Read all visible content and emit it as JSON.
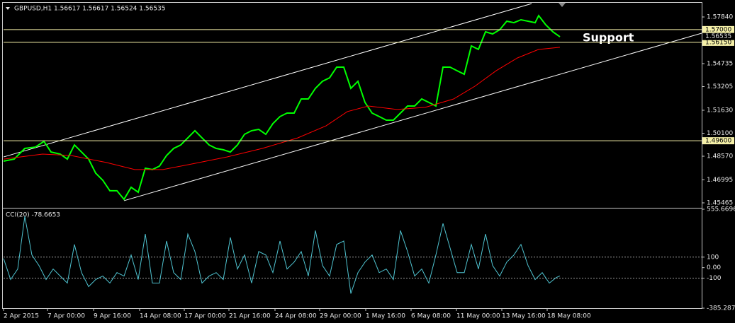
{
  "chart_data": [
    {
      "type": "line",
      "title": "GBPUSD,H1  1.56617 1.56617 1.56524 1.56535",
      "annotation": "Support",
      "xlim": [
        0,
        985
      ],
      "xticks": [
        {
          "value": 0,
          "label": "2 Apr 2015"
        },
        {
          "value": 62,
          "label": "7 Apr 00:00"
        },
        {
          "value": 127,
          "label": "9 Apr 16:00"
        },
        {
          "value": 192,
          "label": "14 Apr 08:00"
        },
        {
          "value": 255,
          "label": "17 Apr 00:00"
        },
        {
          "value": 318,
          "label": "21 Apr 16:00"
        },
        {
          "value": 383,
          "label": "24 Apr 08:00"
        },
        {
          "value": 446,
          "label": "29 Apr 00:00"
        },
        {
          "value": 511,
          "label": "1 May 16:00"
        },
        {
          "value": 575,
          "label": "6 May 08:00"
        },
        {
          "value": 639,
          "label": "11 May 00:00"
        },
        {
          "value": 703,
          "label": "13 May 16:00"
        },
        {
          "value": 767,
          "label": "18 May 08:00"
        }
      ],
      "ylim": [
        1.45136,
        1.58781
      ],
      "yticks": [
        {
          "value": 1.5784,
          "label": "1.57840"
        },
        1.54735,
        1.53205,
        {
          "value": 1.5163,
          "label": "1.51630"
        },
        {
          "value": 1.501,
          "label": "1.50100"
        },
        {
          "value": 1.4857,
          "label": "1.48570"
        },
        1.46995,
        1.45465
      ],
      "series": [
        {
          "color": "#00ff00",
          "x": [
            0,
            15,
            30,
            45,
            57,
            67,
            80,
            90,
            100,
            110,
            120,
            130,
            140,
            150,
            160,
            170,
            180,
            190,
            200,
            210,
            220,
            230,
            240,
            250,
            260,
            270,
            280,
            290,
            300,
            310,
            320,
            330,
            340,
            350,
            360,
            370,
            380,
            390,
            400,
            410,
            420,
            430,
            440,
            450,
            460,
            470,
            480,
            490,
            500,
            510,
            520,
            530,
            540,
            550,
            560,
            570,
            580,
            590,
            600,
            610,
            620,
            630,
            640,
            650,
            660,
            670,
            680,
            690,
            700,
            710,
            720,
            730,
            740,
            750,
            755,
            765,
            775,
            785
          ],
          "values": [
            1.4824,
            1.4838,
            1.4909,
            1.4918,
            1.4956,
            1.4885,
            1.4871,
            1.4838,
            1.4932,
            1.4885,
            1.4838,
            1.4744,
            1.4697,
            1.4627,
            1.4627,
            1.457,
            1.465,
            1.4617,
            1.4777,
            1.4768,
            1.4791,
            1.4862,
            1.4909,
            1.4932,
            1.4979,
            1.5027,
            1.4979,
            1.4932,
            1.4909,
            1.49,
            1.4885,
            1.4932,
            1.5003,
            1.5027,
            1.5036,
            1.5003,
            1.5074,
            1.5121,
            1.5144,
            1.5144,
            1.5238,
            1.5238,
            1.5309,
            1.5356,
            1.5379,
            1.545,
            1.545,
            1.5309,
            1.5356,
            1.5215,
            1.5144,
            1.5121,
            1.5097,
            1.5097,
            1.5144,
            1.5191,
            1.5191,
            1.5238,
            1.5215,
            1.5191,
            1.545,
            1.545,
            1.5426,
            1.5403,
            1.5591,
            1.5568,
            1.5685,
            1.5671,
            1.5699,
            1.5756,
            1.5746,
            1.5765,
            1.5756,
            1.5746,
            1.5793,
            1.5732,
            1.5685,
            1.5652
          ]
        },
        {
          "color": "#ff0000",
          "x": [
            0,
            55,
            95,
            145,
            185,
            225,
            265,
            315,
            365,
            415,
            455,
            485,
            515,
            555,
            595,
            635,
            665,
            695,
            725,
            755,
            785
          ],
          "values": [
            1.4838,
            1.4871,
            1.4862,
            1.4815,
            1.4768,
            1.4768,
            1.4805,
            1.4852,
            1.4909,
            1.4979,
            1.5059,
            1.5154,
            1.5191,
            1.5168,
            1.5182,
            1.5238,
            1.5323,
            1.5426,
            1.5511,
            1.5568,
            1.5582
          ]
        }
      ],
      "trendlines": [
        {
          "color": "#ffffff",
          "x": [
            0,
            745
          ],
          "values": [
            1.4852,
            1.5873
          ]
        },
        {
          "color": "#ffffff",
          "x": [
            170,
            985
          ],
          "values": [
            1.4561,
            1.5676
          ]
        }
      ],
      "levels": [
        {
          "value": 1.57,
          "label": "1.57000"
        },
        {
          "value": 1.5615,
          "label": "1.56150"
        },
        {
          "value": 1.496,
          "label": "1.49600"
        }
      ],
      "level_color": "#f5f0a8",
      "last_price": 1.56535
    },
    {
      "type": "line",
      "title": "CCI(20) -78.6653",
      "xlim": [
        0,
        985
      ],
      "ylim": [
        -385.2873,
        555.6696
      ],
      "yticks": [
        555.6696,
        100,
        {
          "value": 0,
          "label": "0.00"
        },
        -100,
        -385.2873
      ],
      "level_lines": [
        100,
        -100
      ],
      "series": [
        {
          "color": "#4fc3d0",
          "x": [
            0,
            10,
            20,
            30,
            40,
            50,
            60,
            70,
            80,
            90,
            100,
            110,
            120,
            130,
            140,
            150,
            160,
            170,
            180,
            190,
            200,
            210,
            220,
            230,
            240,
            250,
            260,
            270,
            280,
            290,
            300,
            310,
            320,
            330,
            340,
            350,
            360,
            370,
            380,
            390,
            400,
            410,
            420,
            430,
            440,
            450,
            460,
            470,
            480,
            490,
            500,
            510,
            520,
            530,
            540,
            550,
            560,
            570,
            580,
            590,
            600,
            610,
            620,
            630,
            640,
            650,
            660,
            670,
            680,
            690,
            700,
            710,
            720,
            730,
            740,
            750,
            760,
            770,
            780,
            785
          ],
          "values": [
            87,
            -113,
            -13,
            487,
            120,
            20,
            -113,
            -13,
            -80,
            -147,
            220,
            -47,
            -180,
            -113,
            -80,
            -147,
            -47,
            -80,
            120,
            -113,
            320,
            -147,
            -147,
            253,
            -47,
            -113,
            320,
            153,
            -147,
            -80,
            -47,
            -113,
            287,
            -13,
            120,
            -147,
            153,
            120,
            -47,
            253,
            -13,
            53,
            153,
            -80,
            353,
            20,
            -80,
            220,
            253,
            -247,
            -47,
            53,
            120,
            -47,
            -13,
            -113,
            353,
            153,
            -80,
            -13,
            -147,
            120,
            420,
            187,
            -47,
            -47,
            220,
            -13,
            320,
            20,
            -80,
            53,
            120,
            220,
            20,
            -113,
            -47,
            -147,
            -93,
            -79
          ]
        }
      ]
    }
  ]
}
